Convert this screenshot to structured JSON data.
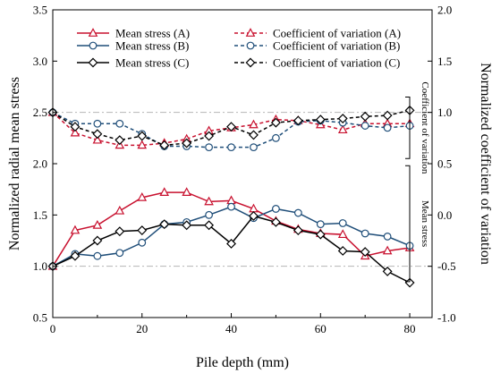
{
  "chart_data": {
    "type": "line",
    "xlabel": "Pile depth (mm)",
    "ylabel_left": "Normalized radial mean stress",
    "ylabel_right": "Normalized coefficient of variation",
    "xlim": [
      0,
      85
    ],
    "ylim_left": [
      0.5,
      3.5
    ],
    "ylim_right": [
      -1.0,
      2.0
    ],
    "x_ticks": [
      0,
      20,
      40,
      60,
      80
    ],
    "y_ticks_left": [
      0.5,
      1.0,
      1.5,
      2.0,
      2.5,
      3.0,
      3.5
    ],
    "y_ticks_right": [
      -1.0,
      -0.5,
      0.0,
      0.5,
      1.0,
      1.5,
      2.0
    ],
    "reference_lines_left": [
      1.0,
      2.5
    ],
    "legend_position": "top",
    "annotations": {
      "cv_bracket": "Coefficient of variation",
      "mean_bracket": "Mean stress"
    },
    "x": [
      0,
      5,
      10,
      15,
      20,
      25,
      30,
      35,
      40,
      45,
      50,
      55,
      60,
      65,
      70,
      75,
      80
    ],
    "series": [
      {
        "name": "Mean stress (A)",
        "axis": "left",
        "style": "solid",
        "marker": "triangle",
        "color": "#c8102e",
        "values": [
          1.0,
          1.35,
          1.4,
          1.54,
          1.67,
          1.72,
          1.72,
          1.63,
          1.64,
          1.56,
          1.44,
          1.36,
          1.32,
          1.31,
          1.1,
          1.15,
          1.18
        ]
      },
      {
        "name": "Mean stress (B)",
        "axis": "left",
        "style": "solid",
        "marker": "circle",
        "color": "#1f4e79",
        "values": [
          1.0,
          1.12,
          1.1,
          1.13,
          1.23,
          1.41,
          1.43,
          1.5,
          1.58,
          1.47,
          1.56,
          1.52,
          1.41,
          1.42,
          1.32,
          1.29,
          1.2
        ]
      },
      {
        "name": "Mean stress (C)",
        "axis": "left",
        "style": "solid",
        "marker": "diamond",
        "color": "#000000",
        "values": [
          1.0,
          1.1,
          1.25,
          1.34,
          1.35,
          1.41,
          1.4,
          1.4,
          1.22,
          1.49,
          1.43,
          1.35,
          1.31,
          1.15,
          1.14,
          0.95,
          0.84
        ]
      },
      {
        "name": "Coefficient of variation (A)",
        "axis": "right",
        "style": "dashed",
        "marker": "triangle",
        "color": "#c8102e",
        "values": [
          1.0,
          0.8,
          0.73,
          0.68,
          0.68,
          0.7,
          0.74,
          0.82,
          0.85,
          0.88,
          0.93,
          0.92,
          0.88,
          0.83,
          0.89,
          0.89,
          0.89
        ]
      },
      {
        "name": "Coefficient of variation (B)",
        "axis": "right",
        "style": "dashed",
        "marker": "circle",
        "color": "#1f4e79",
        "values": [
          1.0,
          0.89,
          0.89,
          0.89,
          0.79,
          0.67,
          0.67,
          0.66,
          0.66,
          0.66,
          0.75,
          0.91,
          0.92,
          0.9,
          0.87,
          0.85,
          0.87
        ]
      },
      {
        "name": "Coefficient of variation (C)",
        "axis": "right",
        "style": "dashed",
        "marker": "diamond",
        "color": "#000000",
        "values": [
          1.0,
          0.86,
          0.79,
          0.73,
          0.77,
          0.68,
          0.7,
          0.77,
          0.86,
          0.78,
          0.9,
          0.92,
          0.93,
          0.94,
          0.96,
          0.97,
          1.02
        ]
      }
    ]
  }
}
